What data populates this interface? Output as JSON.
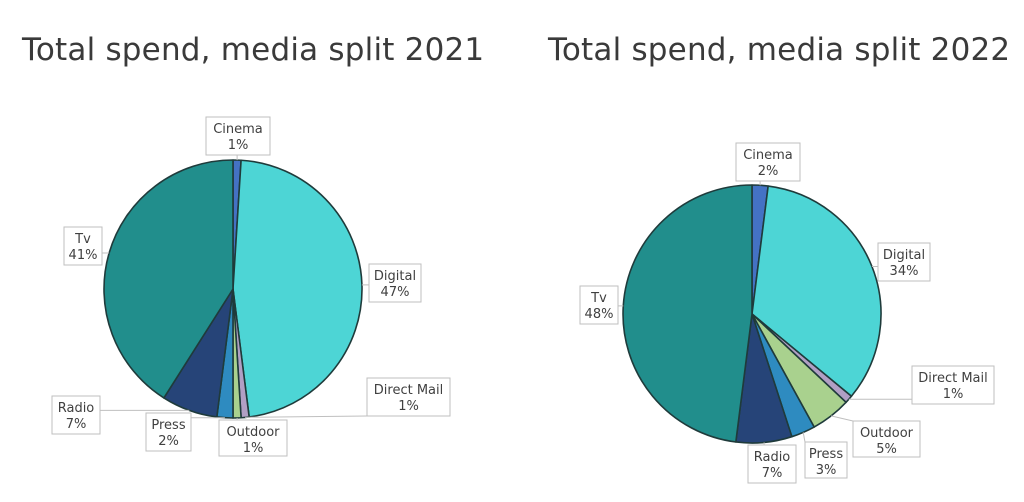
{
  "chart_data": [
    {
      "type": "pie",
      "title": "Total spend, media split 2021",
      "categories": [
        "Cinema",
        "Digital",
        "Direct Mail",
        "Outdoor",
        "Press",
        "Radio",
        "Tv"
      ],
      "values": [
        1,
        47,
        1,
        1,
        2,
        7,
        41
      ],
      "labels": [
        "1%",
        "47%",
        "1%",
        "1%",
        "2%",
        "7%",
        "41%"
      ],
      "colors": [
        "#4472c4",
        "#4dd5d5",
        "#b19fc4",
        "#a9d18e",
        "#2e8bc0",
        "#264478",
        "#218e8c"
      ]
    },
    {
      "type": "pie",
      "title": "Total spend, media split 2022",
      "categories": [
        "Cinema",
        "Digital",
        "Direct Mail",
        "Outdoor",
        "Press",
        "Radio",
        "Tv"
      ],
      "values": [
        2,
        34,
        1,
        5,
        3,
        7,
        48
      ],
      "labels": [
        "2%",
        "34%",
        "1%",
        "5%",
        "3%",
        "7%",
        "48%"
      ],
      "colors": [
        "#4472c4",
        "#4dd5d5",
        "#b19fc4",
        "#a9d18e",
        "#2e8bc0",
        "#264478",
        "#218e8c"
      ]
    }
  ]
}
